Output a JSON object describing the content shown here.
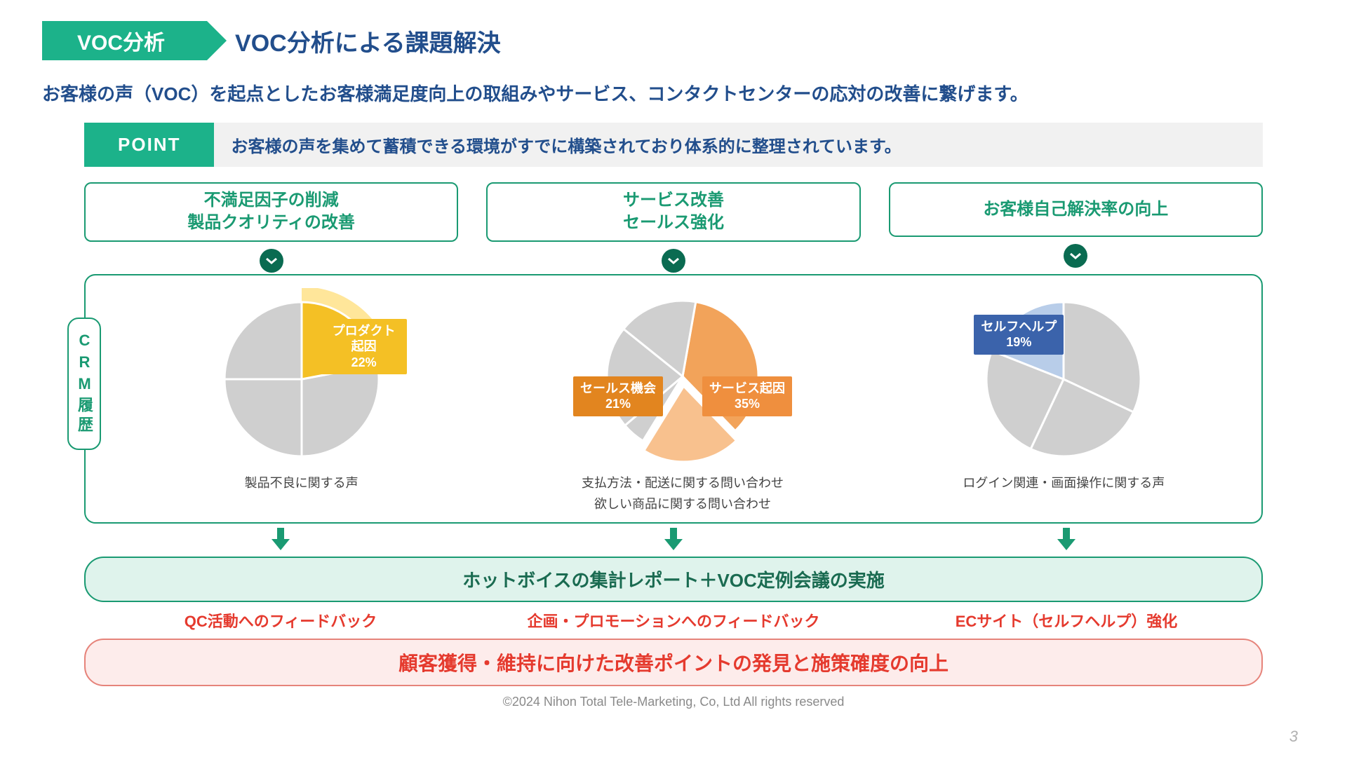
{
  "header": {
    "tab": "VOC分析",
    "title": "VOC分析による課題解決"
  },
  "lead": "お客様の声（VOC）を起点としたお客様満足度向上の取組みやサービス、コンタクトセンターの応対の改善に繋げます。",
  "point": {
    "label": "POINT",
    "body": "お客様の声を集めて蓄積できる環境がすでに構築されており体系的に整理されています。"
  },
  "colors": {
    "teal": "#1cb28a",
    "tealDark": "#0a6b51",
    "tealBorder": "#1a9a72",
    "navy": "#224e8c",
    "grayBg": "#f1f1f1",
    "pieGray": "#cfcfcf",
    "pieGrayStroke": "#ffffff",
    "yellow": "#f4c025",
    "yellowLight": "#ffe69a",
    "orange": "#e8851f",
    "orangeMid": "#f2a35a",
    "orangeLight": "#f8c18e",
    "blue": "#3b63ab",
    "blueLight": "#b8cde9",
    "red": "#e53a2e",
    "pink": "#fdeceb",
    "pinkBorder": "#e6837a",
    "greenBg": "#dff3ec",
    "footerGray": "#8a8a8a"
  },
  "goals": [
    {
      "line1": "不満足因子の削減",
      "line2": "製品クオリティの改善"
    },
    {
      "line1": "サービス改善",
      "line2": "セールス強化"
    },
    {
      "line1": "お客様自己解決率の向上",
      "line2": ""
    }
  ],
  "crm": {
    "label": "CRM履歴"
  },
  "pies": [
    {
      "type": "pie",
      "highlight": {
        "label": "プロダクト起因",
        "pct": "22%",
        "value": 22,
        "color": "#f4c025",
        "bulge": true,
        "bulgeColor": "#ffe69a",
        "badgeColor": "#f4c025"
      },
      "others": [
        28,
        25,
        25
      ],
      "otherColor": "#cfcfcf",
      "caption": "製品不良に関する声",
      "startAngleDeg": -90
    },
    {
      "type": "pie",
      "slices": [
        {
          "label": "サービス起因",
          "pct": "35%",
          "value": 35,
          "color": "#f2a35a",
          "badgeColor": "#ef8f3e",
          "badgePos": "right"
        },
        {
          "label": "セールス機会",
          "pct": "21%",
          "value": 21,
          "color": "#f8c18e",
          "badgeColor": "#e2851f",
          "badgePos": "left",
          "explode": true
        }
      ],
      "others": [
        5,
        22,
        17
      ],
      "otherColor": "#cfcfcf",
      "caption1": "支払方法・配送に関する問い合わせ",
      "caption2": "欲しい商品に関する問い合わせ",
      "startAngleDeg": 10
    },
    {
      "type": "pie",
      "highlight": {
        "label": "セルフヘルプ",
        "pct": "19%",
        "value": 19,
        "color": "#b8cde9",
        "badgeColor": "#3b63ab"
      },
      "others": [
        32,
        25,
        24
      ],
      "otherColor": "#cfcfcf",
      "caption": "ログイン関連・画面操作に関する声",
      "startAngleDeg": -90
    }
  ],
  "greenBar": "ホットボイスの集計レポート＋VOC定例会議の実施",
  "redItems": [
    "QC活動へのフィードバック",
    "企画・プロモーションへのフィードバック",
    "ECサイト（セルフヘルプ）強化"
  ],
  "pinkBar": "顧客獲得・維持に向けた改善ポイントの発見と施策確度の向上",
  "footer": "©2024 Nihon Total Tele-Marketing, Co, Ltd  All rights reserved",
  "pageNum": "3"
}
